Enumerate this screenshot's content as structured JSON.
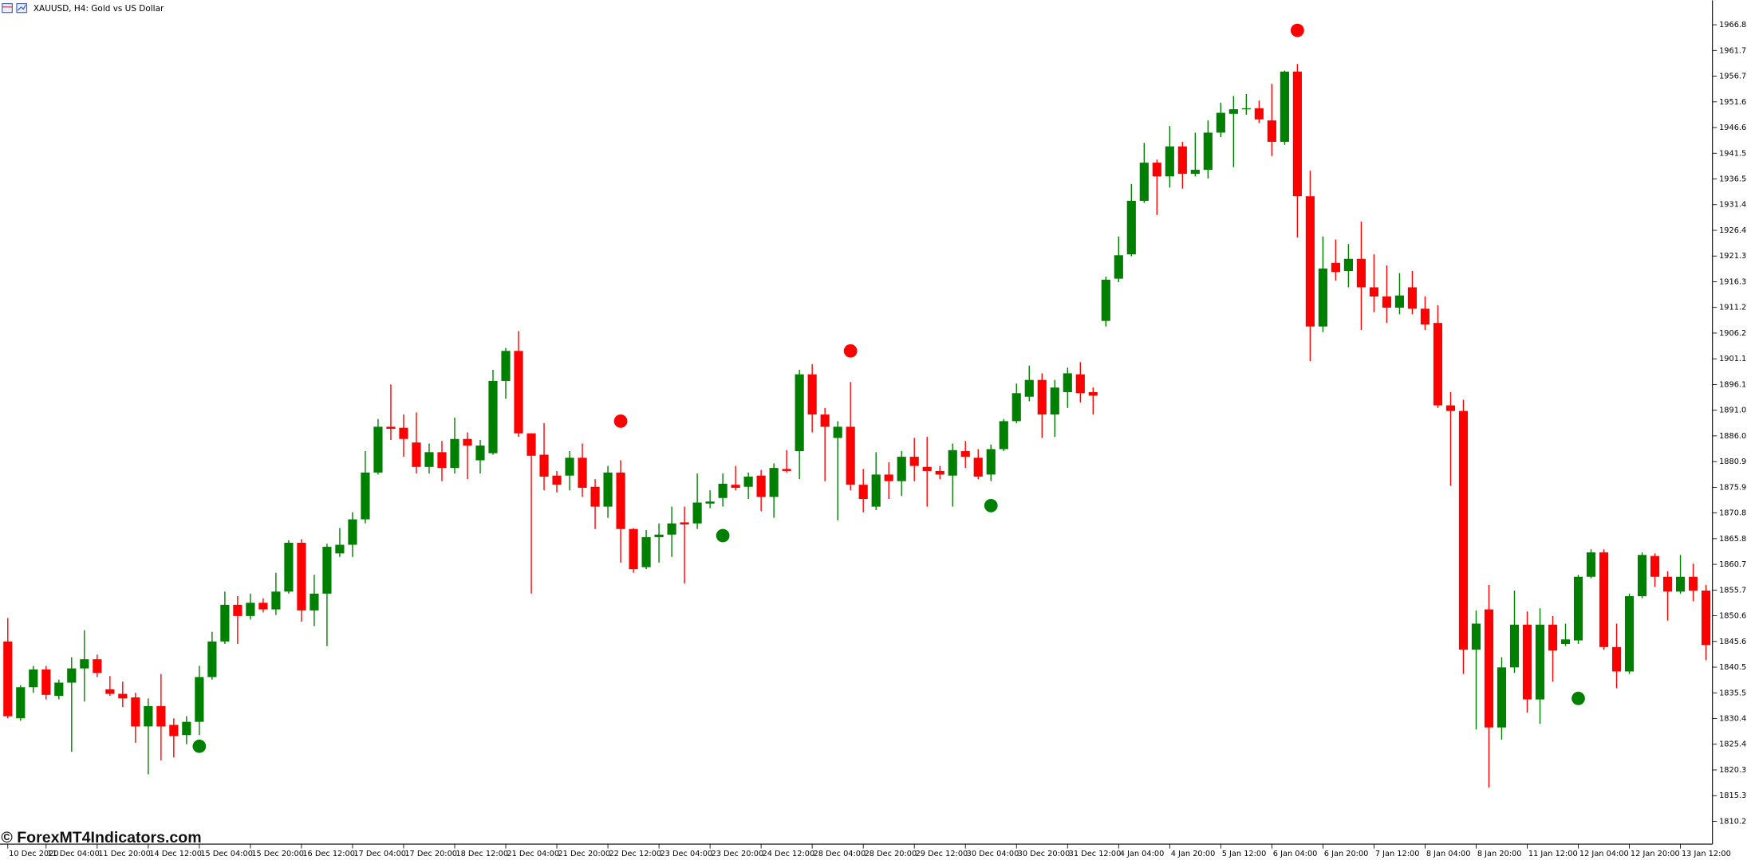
{
  "chart_data": {
    "type": "candlestick",
    "title": "XAUUSD, H4:  Gold vs US Dollar",
    "watermark": "© ForexMT4Indicators.com",
    "up_color": "#008000",
    "down_color": "#ff0000",
    "categories": [
      "10 Dec 2020",
      null,
      null,
      "11 Dec 04:00",
      null,
      null,
      null,
      "11 Dec 20:00",
      null,
      null,
      null,
      "14 Dec 12:00",
      null,
      null,
      null,
      "15 Dec 04:00",
      null,
      null,
      null,
      "15 Dec 20:00",
      null,
      null,
      null,
      "16 Dec 12:00",
      null,
      null,
      null,
      "17 Dec 04:00",
      null,
      null,
      null,
      "17 Dec 20:00",
      null,
      null,
      null,
      "18 Dec 12:00",
      null,
      null,
      null,
      "21 Dec 04:00",
      null,
      null,
      null,
      "21 Dec 20:00",
      null,
      null,
      null,
      "22 Dec 12:00",
      null,
      null,
      null,
      "23 Dec 04:00",
      null,
      null,
      null,
      "23 Dec 20:00",
      null,
      null,
      null,
      "24 Dec 12:00",
      null,
      null,
      null,
      "28 Dec 04:00",
      null,
      null,
      null,
      "28 Dec 20:00",
      null,
      null,
      null,
      "29 Dec 12:00",
      null,
      null,
      null,
      "30 Dec 04:00",
      null,
      null,
      null,
      "30 Dec 20:00",
      null,
      null,
      null,
      "31 Dec 12:00",
      null,
      null,
      null,
      "4 Jan 04:00",
      null,
      null,
      null,
      "4 Jan 20:00",
      null,
      null,
      null,
      "5 Jan 12:00",
      null,
      null,
      null,
      "6 Jan 04:00",
      null,
      null,
      null,
      "6 Jan 20:00",
      null,
      null,
      null,
      "7 Jan 12:00",
      null,
      null,
      null,
      "8 Jan 04:00",
      null,
      null,
      null,
      "8 Jan 20:00",
      null,
      null,
      null,
      "11 Jan 12:00",
      null,
      null,
      null,
      "12 Jan 04:00",
      null,
      null,
      null,
      "12 Jan 20:00",
      null,
      null,
      null,
      "13 Jan 12:00",
      null,
      null
    ],
    "open": [
      1845.6,
      1830.5,
      1836.6,
      1840.1,
      1834.9,
      1837.5,
      1840.3,
      1842.1,
      1836.2,
      1835.3,
      1834.6,
      1828.9,
      1832.9,
      1829.2,
      1827.2,
      1829.8,
      1838.6,
      1845.6,
      1852.8,
      1850.6,
      1853.2,
      1851.9,
      1855.4,
      1865.0,
      1851.7,
      1855.0,
      1862.9,
      1864.6,
      1869.6,
      1878.8,
      1887.8,
      1887.6,
      1884.7,
      1879.9,
      1882.8,
      1879.7,
      1885.4,
      1881.2,
      1882.6,
      1896.8,
      1902.7,
      1886.5,
      1882.3,
      1878.2,
      1878.2,
      1881.7,
      1876.0,
      1872.1,
      1878.8,
      1867.7,
      1860.2,
      1866.1,
      1866.6,
      1869.0,
      1868.8,
      1872.7,
      1873.8,
      1876.4,
      1876.0,
      1878.2,
      1874.0,
      1879.5,
      1883.0,
      1898.1,
      1890.2,
      1885.6,
      1887.8,
      1876.4,
      1872.1,
      1878.4,
      1877.1,
      1881.9,
      1879.9,
      1879.1,
      1878.2,
      1883.0,
      1881.7,
      1878.4,
      1883.4,
      1888.9,
      1893.7,
      1897.0,
      1890.2,
      1894.6,
      1898.1,
      1894.6,
      1908.6,
      1916.9,
      1921.7,
      1932.2,
      1939.7,
      1937.0,
      1942.9,
      1937.5,
      1938.3,
      1945.6,
      1949.3,
      1950.2,
      1950.4,
      1948.0,
      1943.8,
      1957.6,
      1933.1,
      1907.5,
      1920.0,
      1918.4,
      1920.8,
      1915.2,
      1913.4,
      1911.2,
      1915.2,
      1911.0,
      1908.2,
      1892.0,
      1890.9,
      1844.0,
      1851.9,
      1828.7,
      1840.5,
      1848.9,
      1834.2,
      1848.9,
      1845.1,
      1845.8,
      1858.3,
      1863.1,
      1844.5,
      1839.7,
      1854.5,
      1862.4,
      1858.3,
      1855.4,
      1858.3,
      1855.6
    ],
    "high": [
      1850.2,
      1837.0,
      1840.8,
      1840.8,
      1838.1,
      1842.5,
      1847.8,
      1843.0,
      1838.8,
      1837.7,
      1835.5,
      1834.4,
      1839.2,
      1830.5,
      1830.9,
      1840.8,
      1847.5,
      1855.4,
      1854.5,
      1855.0,
      1854.1,
      1859.1,
      1865.5,
      1865.7,
      1858.7,
      1864.8,
      1867.9,
      1871.0,
      1883.0,
      1889.3,
      1896.1,
      1890.2,
      1890.6,
      1884.5,
      1885.0,
      1889.6,
      1886.7,
      1885.2,
      1899.0,
      1903.3,
      1906.6,
      1886.5,
      1888.5,
      1879.1,
      1883.0,
      1884.5,
      1877.5,
      1880.1,
      1881.2,
      1867.9,
      1867.5,
      1868.8,
      1872.1,
      1872.1,
      1878.6,
      1875.3,
      1878.6,
      1880.1,
      1878.8,
      1879.3,
      1880.6,
      1883.2,
      1899.0,
      1900.1,
      1891.5,
      1888.9,
      1896.6,
      1879.5,
      1882.8,
      1880.8,
      1883.0,
      1885.6,
      1885.8,
      1880.1,
      1884.5,
      1885.0,
      1883.4,
      1884.3,
      1889.3,
      1896.3,
      1899.8,
      1898.3,
      1897.0,
      1899.4,
      1900.5,
      1895.5,
      1917.3,
      1925.2,
      1935.5,
      1943.6,
      1940.3,
      1946.9,
      1943.8,
      1945.6,
      1948.0,
      1951.5,
      1952.8,
      1953.2,
      1951.9,
      1955.2,
      1957.8,
      1959.1,
      1938.1,
      1925.2,
      1924.6,
      1923.7,
      1928.1,
      1921.7,
      1919.5,
      1918.0,
      1918.4,
      1913.4,
      1911.7,
      1894.6,
      1893.1,
      1851.7,
      1856.7,
      1842.5,
      1855.6,
      1851.5,
      1852.1,
      1850.6,
      1849.1,
      1858.7,
      1863.7,
      1863.7,
      1849.1,
      1855.0,
      1863.1,
      1862.9,
      1859.4,
      1862.6,
      1860.9,
      1856.7
    ],
    "low": [
      1830.5,
      1830.0,
      1835.5,
      1834.2,
      1834.2,
      1823.9,
      1833.8,
      1838.6,
      1834.9,
      1832.7,
      1825.7,
      1819.5,
      1822.2,
      1822.8,
      1825.4,
      1827.2,
      1838.1,
      1845.1,
      1845.1,
      1849.9,
      1851.3,
      1850.8,
      1855.0,
      1849.5,
      1848.6,
      1844.7,
      1862.2,
      1862.2,
      1868.8,
      1878.4,
      1885.2,
      1881.9,
      1878.6,
      1878.6,
      1877.1,
      1878.6,
      1877.5,
      1878.6,
      1882.3,
      1893.3,
      1885.8,
      1855.0,
      1875.3,
      1874.9,
      1875.3,
      1874.0,
      1867.7,
      1869.9,
      1861.1,
      1859.1,
      1859.8,
      1861.1,
      1862.2,
      1857.0,
      1867.7,
      1871.8,
      1872.1,
      1875.3,
      1873.6,
      1871.2,
      1869.9,
      1878.8,
      1877.5,
      1886.7,
      1877.1,
      1869.4,
      1875.3,
      1871.0,
      1871.4,
      1873.6,
      1874.2,
      1877.1,
      1872.1,
      1877.5,
      1872.1,
      1879.7,
      1877.5,
      1877.1,
      1883.0,
      1888.5,
      1892.8,
      1885.6,
      1885.8,
      1891.5,
      1892.6,
      1890.2,
      1907.5,
      1916.2,
      1921.3,
      1931.8,
      1929.4,
      1934.8,
      1934.6,
      1937.0,
      1936.6,
      1944.7,
      1938.8,
      1949.1,
      1947.5,
      1941.0,
      1943.2,
      1925.0,
      1900.7,
      1906.4,
      1916.5,
      1915.2,
      1906.8,
      1910.3,
      1908.2,
      1909.9,
      1909.9,
      1906.8,
      1891.5,
      1876.2,
      1839.2,
      1828.3,
      1816.9,
      1826.3,
      1839.4,
      1831.6,
      1829.4,
      1837.7,
      1844.7,
      1845.1,
      1858.0,
      1844.0,
      1836.4,
      1839.2,
      1854.1,
      1856.3,
      1849.7,
      1855.0,
      1853.5,
      1841.9
    ],
    "close": [
      1830.9,
      1836.6,
      1840.1,
      1835.1,
      1837.5,
      1840.3,
      1842.1,
      1839.4,
      1835.3,
      1834.4,
      1828.9,
      1832.9,
      1828.9,
      1827.0,
      1829.8,
      1838.6,
      1845.6,
      1852.8,
      1850.6,
      1853.2,
      1851.9,
      1855.4,
      1865.0,
      1851.7,
      1855.0,
      1864.2,
      1864.6,
      1869.6,
      1878.8,
      1887.8,
      1887.4,
      1885.4,
      1879.9,
      1882.8,
      1879.7,
      1885.4,
      1884.1,
      1884.1,
      1896.8,
      1902.7,
      1886.5,
      1882.1,
      1878.0,
      1876.4,
      1881.7,
      1875.8,
      1872.1,
      1878.8,
      1867.7,
      1859.8,
      1866.1,
      1866.6,
      1868.8,
      1868.6,
      1872.9,
      1873.1,
      1876.6,
      1875.8,
      1878.0,
      1874.0,
      1879.7,
      1879.1,
      1898.1,
      1890.2,
      1887.8,
      1887.8,
      1876.4,
      1873.6,
      1878.4,
      1877.1,
      1881.9,
      1880.1,
      1879.1,
      1878.4,
      1883.2,
      1881.9,
      1878.0,
      1883.4,
      1888.9,
      1894.4,
      1897.0,
      1890.2,
      1895.5,
      1898.3,
      1894.4,
      1893.9,
      1916.7,
      1921.5,
      1932.2,
      1939.7,
      1937.0,
      1942.9,
      1937.5,
      1938.3,
      1945.6,
      1949.5,
      1950.2,
      1950.4,
      1948.2,
      1943.8,
      1957.6,
      1933.1,
      1907.5,
      1918.9,
      1918.2,
      1920.8,
      1915.2,
      1913.4,
      1911.2,
      1913.6,
      1911.0,
      1907.9,
      1892.0,
      1890.9,
      1844.0,
      1849.1,
      1828.7,
      1840.5,
      1848.9,
      1834.2,
      1848.9,
      1843.8,
      1846.0,
      1858.3,
      1863.1,
      1844.5,
      1839.7,
      1854.5,
      1862.6,
      1858.3,
      1855.4,
      1858.3,
      1855.6,
      1844.9
    ],
    "markers": [
      {
        "index": 15,
        "value": 1825.0,
        "color": "#008000"
      },
      {
        "index": 48,
        "value": 1888.9,
        "color": "#ff0000"
      },
      {
        "index": 56,
        "value": 1866.4,
        "color": "#008000"
      },
      {
        "index": 66,
        "value": 1902.7,
        "color": "#ff0000"
      },
      {
        "index": 77,
        "value": 1872.3,
        "color": "#008000"
      },
      {
        "index": 101,
        "value": 1965.7,
        "color": "#ff0000"
      },
      {
        "index": 123,
        "value": 1834.4,
        "color": "#008000"
      }
    ],
    "ylim": [
      1805.77,
      1971.61
    ],
    "yticks": [
      {
        "value": 1966.8,
        "label": "1966.80"
      },
      {
        "value": 1961.75,
        "label": "1961.75"
      },
      {
        "value": 1956.7,
        "label": "1956.70"
      },
      {
        "value": 1951.65,
        "label": "1951.65"
      },
      {
        "value": 1946.6,
        "label": "1946.60"
      },
      {
        "value": 1941.55,
        "label": "1941.55"
      },
      {
        "value": 1936.5,
        "label": "1936.50"
      },
      {
        "value": 1931.45,
        "label": "1931.45"
      },
      {
        "value": 1926.4,
        "label": "1926.40"
      },
      {
        "value": 1921.35,
        "label": "1921.35"
      },
      {
        "value": 1916.3,
        "label": "1916.30"
      },
      {
        "value": 1911.25,
        "label": "1911.25"
      },
      {
        "value": 1906.2,
        "label": "1906.20"
      },
      {
        "value": 1901.15,
        "label": "1901.15"
      },
      {
        "value": 1896.1,
        "label": "1896.10"
      },
      {
        "value": 1891.05,
        "label": "1891.05"
      },
      {
        "value": 1886,
        "label": "1886.00"
      },
      {
        "value": 1880.95,
        "label": "1880.95"
      },
      {
        "value": 1875.9,
        "label": "1875.90"
      },
      {
        "value": 1870.85,
        "label": "1870.85"
      },
      {
        "value": 1865.8,
        "label": "1865.80"
      },
      {
        "value": 1860.75,
        "label": "1860.75"
      },
      {
        "value": 1855.7,
        "label": "1855.70"
      },
      {
        "value": 1850.65,
        "label": "1850.65"
      },
      {
        "value": 1845.6,
        "label": "1845.60"
      },
      {
        "value": 1840.55,
        "label": "1840.55"
      },
      {
        "value": 1835.5,
        "label": "1835.50"
      },
      {
        "value": 1830.45,
        "label": "1830.45"
      },
      {
        "value": 1825.4,
        "label": "1825.40"
      },
      {
        "value": 1820.35,
        "label": "1820.35"
      },
      {
        "value": 1815.3,
        "label": "1815.30"
      },
      {
        "value": 1810.25,
        "label": "1810.25"
      }
    ],
    "grid": false
  }
}
